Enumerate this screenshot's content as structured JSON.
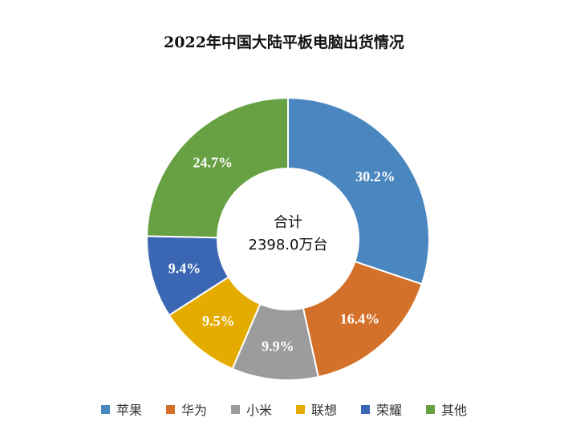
{
  "chart_data": {
    "type": "pie",
    "variant": "donut",
    "title": "2022年中国大陆平板电脑出货情况",
    "center_label": {
      "line1": "合计",
      "line2": "2398.0万台"
    },
    "categories": [
      "苹果",
      "华为",
      "小米",
      "联想",
      "荣耀",
      "其他"
    ],
    "values": [
      30.2,
      16.4,
      9.9,
      9.5,
      9.4,
      24.7
    ],
    "value_labels": [
      "30.2%",
      "16.4%",
      "9.9%",
      "9.5%",
      "9.4%",
      "24.7%"
    ],
    "colors": [
      "#4a86c0",
      "#d3702a",
      "#9c9c9c",
      "#e5ac00",
      "#3b66b3",
      "#67a143"
    ],
    "unit": "%",
    "legend_position": "bottom",
    "start_angle": "12 o'clock, clockwise"
  }
}
